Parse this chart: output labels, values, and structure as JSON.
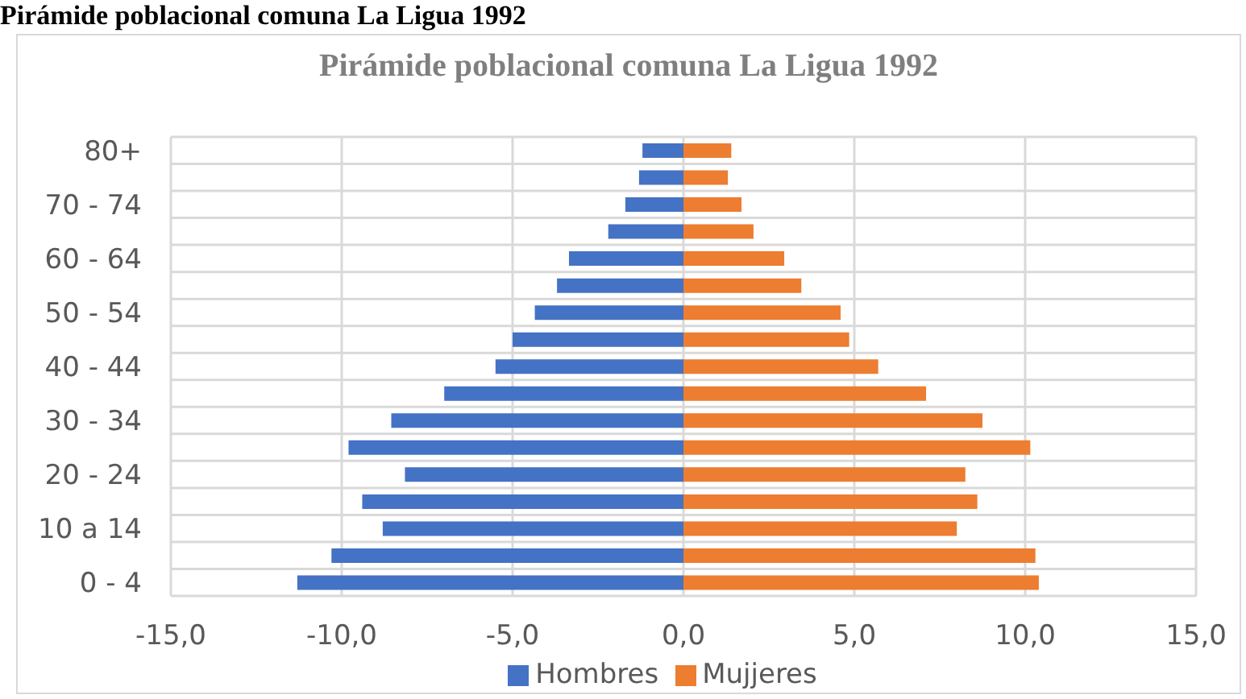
{
  "chart_data": {
    "type": "bar",
    "orientation": "horizontal",
    "stacked": true,
    "title": "Pirámide poblacional comuna La Ligua 1992",
    "annotations": [
      "Pirámide poblacional comuna La Ligua 1992"
    ],
    "categories": [
      "80+",
      null,
      "70 - 74",
      null,
      "60 - 64",
      null,
      "50 - 54",
      null,
      "40 - 44",
      null,
      "30 - 34",
      null,
      "20 - 24",
      null,
      "10 a 14",
      null,
      "0 - 4"
    ],
    "series": [
      {
        "name": "Mujjeres",
        "color": "#ed7d31",
        "values": [
          1.4,
          1.3,
          1.7,
          2.05,
          2.95,
          3.45,
          4.6,
          4.85,
          5.7,
          7.1,
          8.75,
          10.15,
          8.25,
          8.6,
          8.0,
          10.3,
          10.4
        ]
      },
      {
        "name": "Hombres",
        "color": "#4472c4",
        "values": [
          -1.2,
          -1.3,
          -1.7,
          -2.2,
          -3.35,
          -3.7,
          -4.35,
          -5.0,
          -5.5,
          -7.0,
          -8.55,
          -9.8,
          -8.15,
          -9.4,
          -8.8,
          -10.3,
          -11.3
        ]
      }
    ],
    "xlim": [
      -15,
      15
    ],
    "xticks": [
      {
        "value": -15,
        "label": "-15,0"
      },
      {
        "value": -10,
        "label": "-10,0"
      },
      {
        "value": -5,
        "label": "-5,0"
      },
      {
        "value": 0,
        "label": "0,0"
      },
      {
        "value": 5,
        "label": "5,0"
      },
      {
        "value": 10,
        "label": "10,0"
      },
      {
        "value": 15,
        "label": "15,0"
      }
    ],
    "grid": true,
    "legend": "bottom"
  }
}
